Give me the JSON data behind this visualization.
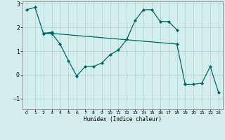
{
  "xlabel": "Humidex (Indice chaleur)",
  "bg_color": "#d4eeee",
  "grid_color": "#aad4d4",
  "line_color": "#006666",
  "xlim": [
    -0.5,
    23.5
  ],
  "ylim": [
    -1.45,
    3.1
  ],
  "yticks": [
    -1,
    0,
    1,
    2,
    3
  ],
  "xticks": [
    0,
    1,
    2,
    3,
    4,
    5,
    6,
    7,
    8,
    9,
    10,
    11,
    12,
    13,
    14,
    15,
    16,
    17,
    18,
    19,
    20,
    21,
    22,
    23
  ],
  "series": [
    {
      "x": [
        0,
        1,
        2,
        3
      ],
      "y": [
        2.75,
        2.85,
        1.75,
        1.8
      ]
    },
    {
      "x": [
        2,
        3,
        4,
        5,
        6,
        7,
        8,
        9,
        10,
        11,
        12,
        13,
        14,
        15,
        16,
        17,
        18
      ],
      "y": [
        1.75,
        1.75,
        1.3,
        0.6,
        -0.05,
        0.35,
        0.35,
        0.5,
        0.85,
        1.05,
        1.5,
        2.3,
        2.75,
        2.75,
        2.25,
        2.25,
        1.9
      ]
    },
    {
      "x": [
        2,
        3,
        18,
        19
      ],
      "y": [
        1.75,
        1.75,
        1.3,
        -0.4
      ]
    },
    {
      "x": [
        19,
        20,
        21,
        22,
        23
      ],
      "y": [
        -0.4,
        -0.4,
        -0.35,
        0.35,
        -0.75
      ]
    }
  ]
}
